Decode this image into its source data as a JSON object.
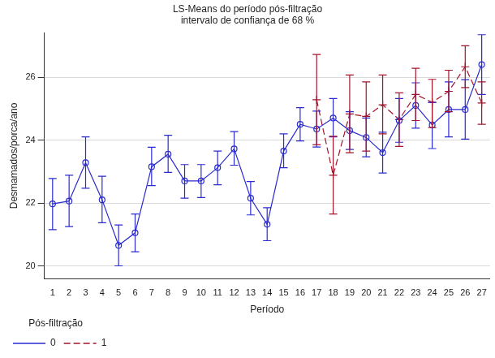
{
  "chart_data": {
    "type": "line",
    "title": [
      "LS-Means do período pós-filtração",
      "intervalo de confiança de 68 %"
    ],
    "x_label": "Período",
    "y_label": "Desmamados/porca/ano",
    "legend_title": "Pós-filtração",
    "legend": "bottom",
    "grid": true,
    "categories": [
      1,
      2,
      3,
      4,
      5,
      6,
      7,
      8,
      9,
      10,
      11,
      12,
      13,
      14,
      15,
      16,
      17,
      18,
      19,
      20,
      21,
      22,
      23,
      24,
      25,
      26,
      27
    ],
    "ylim": [
      19.6,
      27.4
    ],
    "yticks": [
      20,
      22,
      24,
      26
    ],
    "series": [
      {
        "name": "0",
        "color": "#2b2bcf",
        "marker": "circle",
        "line_style": "solid",
        "values": [
          21.97,
          22.06,
          23.28,
          22.1,
          20.65,
          21.05,
          23.15,
          23.55,
          22.7,
          22.7,
          23.12,
          23.72,
          22.15,
          21.32,
          23.65,
          24.5,
          24.35,
          24.7,
          24.3,
          24.08,
          23.6,
          24.62,
          25.1,
          24.48,
          24.97,
          24.97,
          26.4
        ],
        "lower": [
          21.15,
          21.25,
          22.47,
          21.37,
          20.0,
          20.45,
          22.55,
          22.97,
          22.15,
          22.17,
          22.58,
          23.2,
          21.62,
          20.8,
          23.12,
          23.97,
          23.78,
          24.1,
          23.7,
          23.47,
          22.95,
          23.93,
          24.38,
          23.73,
          24.1,
          24.03,
          25.45
        ],
        "upper": [
          22.78,
          22.88,
          24.1,
          22.85,
          21.3,
          21.65,
          23.77,
          24.15,
          23.22,
          23.22,
          23.65,
          24.27,
          22.68,
          21.85,
          24.2,
          25.03,
          24.92,
          25.32,
          24.9,
          24.7,
          24.25,
          25.32,
          25.82,
          25.2,
          25.85,
          25.92,
          27.35
        ]
      },
      {
        "name": "1",
        "color": "#a3142c",
        "marker": "cross",
        "line_style": "dashed",
        "values": [
          null,
          null,
          null,
          null,
          null,
          null,
          null,
          null,
          null,
          null,
          null,
          null,
          null,
          null,
          null,
          null,
          25.28,
          22.88,
          24.83,
          24.75,
          25.12,
          24.65,
          25.45,
          25.2,
          25.55,
          26.33,
          25.18
        ],
        "lower": [
          null,
          null,
          null,
          null,
          null,
          null,
          null,
          null,
          null,
          null,
          null,
          null,
          null,
          null,
          null,
          null,
          23.85,
          21.65,
          23.6,
          23.65,
          24.2,
          23.8,
          24.62,
          24.4,
          24.9,
          25.67,
          24.5
        ],
        "upper": [
          null,
          null,
          null,
          null,
          null,
          null,
          null,
          null,
          null,
          null,
          null,
          null,
          null,
          null,
          null,
          null,
          26.72,
          24.12,
          26.07,
          25.85,
          26.07,
          25.5,
          26.28,
          25.93,
          26.22,
          27.0,
          25.85
        ]
      }
    ]
  }
}
